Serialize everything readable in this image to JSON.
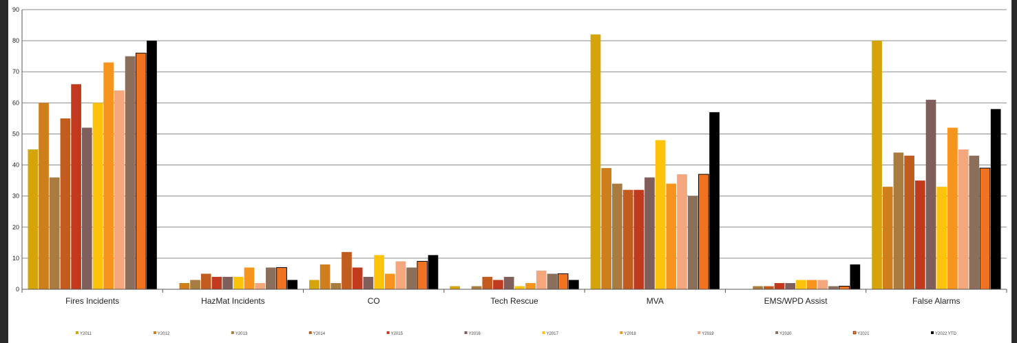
{
  "chart_data": {
    "type": "bar",
    "title": "",
    "xlabel": "",
    "ylabel": "",
    "ylim": [
      0,
      90
    ],
    "yticks": [
      0,
      10,
      20,
      30,
      40,
      50,
      60,
      70,
      80,
      90
    ],
    "grid": true,
    "legend_position": "bottom",
    "categories": [
      "Fires Incidents",
      "HazMat Incidents",
      "CO",
      "Tech Rescue",
      "MVA",
      "EMS/WPD Assist",
      "False Alarms"
    ],
    "series": [
      {
        "name": "Y2011",
        "color": "#d4a40a",
        "values": [
          45,
          0,
          3,
          1,
          82,
          0,
          80
        ]
      },
      {
        "name": "Y2012",
        "color": "#cf7e1c",
        "values": [
          60,
          2,
          8,
          0,
          39,
          0,
          33
        ]
      },
      {
        "name": "Y2013",
        "color": "#a97b3f",
        "values": [
          36,
          3,
          2,
          1,
          34,
          1,
          44
        ]
      },
      {
        "name": "Y2014",
        "color": "#c25c1e",
        "values": [
          55,
          5,
          12,
          4,
          32,
          1,
          43
        ]
      },
      {
        "name": "Y2015",
        "color": "#c23a1e",
        "values": [
          66,
          4,
          7,
          3,
          32,
          2,
          35
        ]
      },
      {
        "name": "Y2016",
        "color": "#7f5e5b",
        "values": [
          52,
          4,
          4,
          4,
          36,
          2,
          61
        ]
      },
      {
        "name": "Y2017",
        "color": "#fcc30a",
        "values": [
          60,
          4,
          11,
          1,
          48,
          3,
          33
        ]
      },
      {
        "name": "Y2018",
        "color": "#f7941d",
        "values": [
          73,
          7,
          5,
          2,
          34,
          3,
          52
        ]
      },
      {
        "name": "Y2019",
        "color": "#f4a67c",
        "values": [
          64,
          2,
          9,
          6,
          37,
          3,
          45
        ]
      },
      {
        "name": "Y2020",
        "color": "#8c6f5a",
        "values": [
          75,
          7,
          7,
          5,
          30,
          1,
          43
        ]
      },
      {
        "name": "Y2021",
        "color": "#ef7320",
        "values": [
          76,
          7,
          9,
          5,
          37,
          1,
          39
        ]
      },
      {
        "name": "Y2022 YTD",
        "color": "#000000",
        "values": [
          80,
          3,
          11,
          3,
          57,
          8,
          58
        ]
      }
    ]
  }
}
